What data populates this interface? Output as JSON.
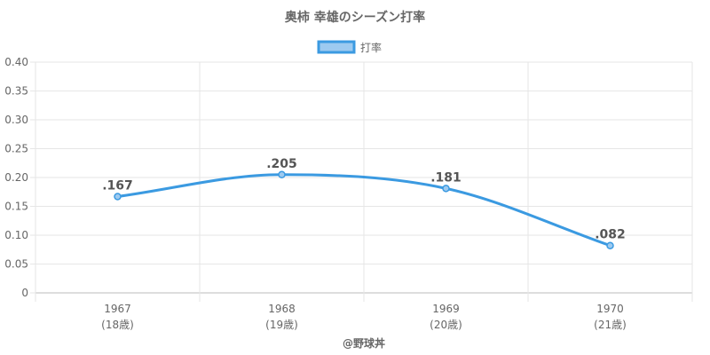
{
  "chart_data": {
    "type": "line",
    "title": "奥柿 幸雄のシーズン打率",
    "legend": {
      "label": "打率",
      "placement": "top-center"
    },
    "categories": [
      "1967",
      "1968",
      "1969",
      "1970"
    ],
    "category_sublabels": [
      "(18歳)",
      "(19歳)",
      "(20歳)",
      "(21歳)"
    ],
    "series": [
      {
        "name": "打率",
        "values": [
          0.167,
          0.205,
          0.181,
          0.082
        ],
        "labels": [
          ".167",
          ".205",
          ".181",
          ".082"
        ]
      }
    ],
    "ylim": [
      0,
      0.4
    ],
    "yticks": [
      0,
      0.05,
      0.1,
      0.15,
      0.2,
      0.25,
      0.3,
      0.35,
      0.4
    ],
    "ytick_labels": [
      "0",
      "0.05",
      "0.10",
      "0.15",
      "0.20",
      "0.25",
      "0.30",
      "0.35",
      "0.40"
    ],
    "grid": true,
    "colors": {
      "line": "#3b9ae1",
      "fill": "#9dcaf0",
      "grid": "#e6e6e6",
      "axis": "#bbbbbb"
    }
  },
  "credit": "@野球丼"
}
